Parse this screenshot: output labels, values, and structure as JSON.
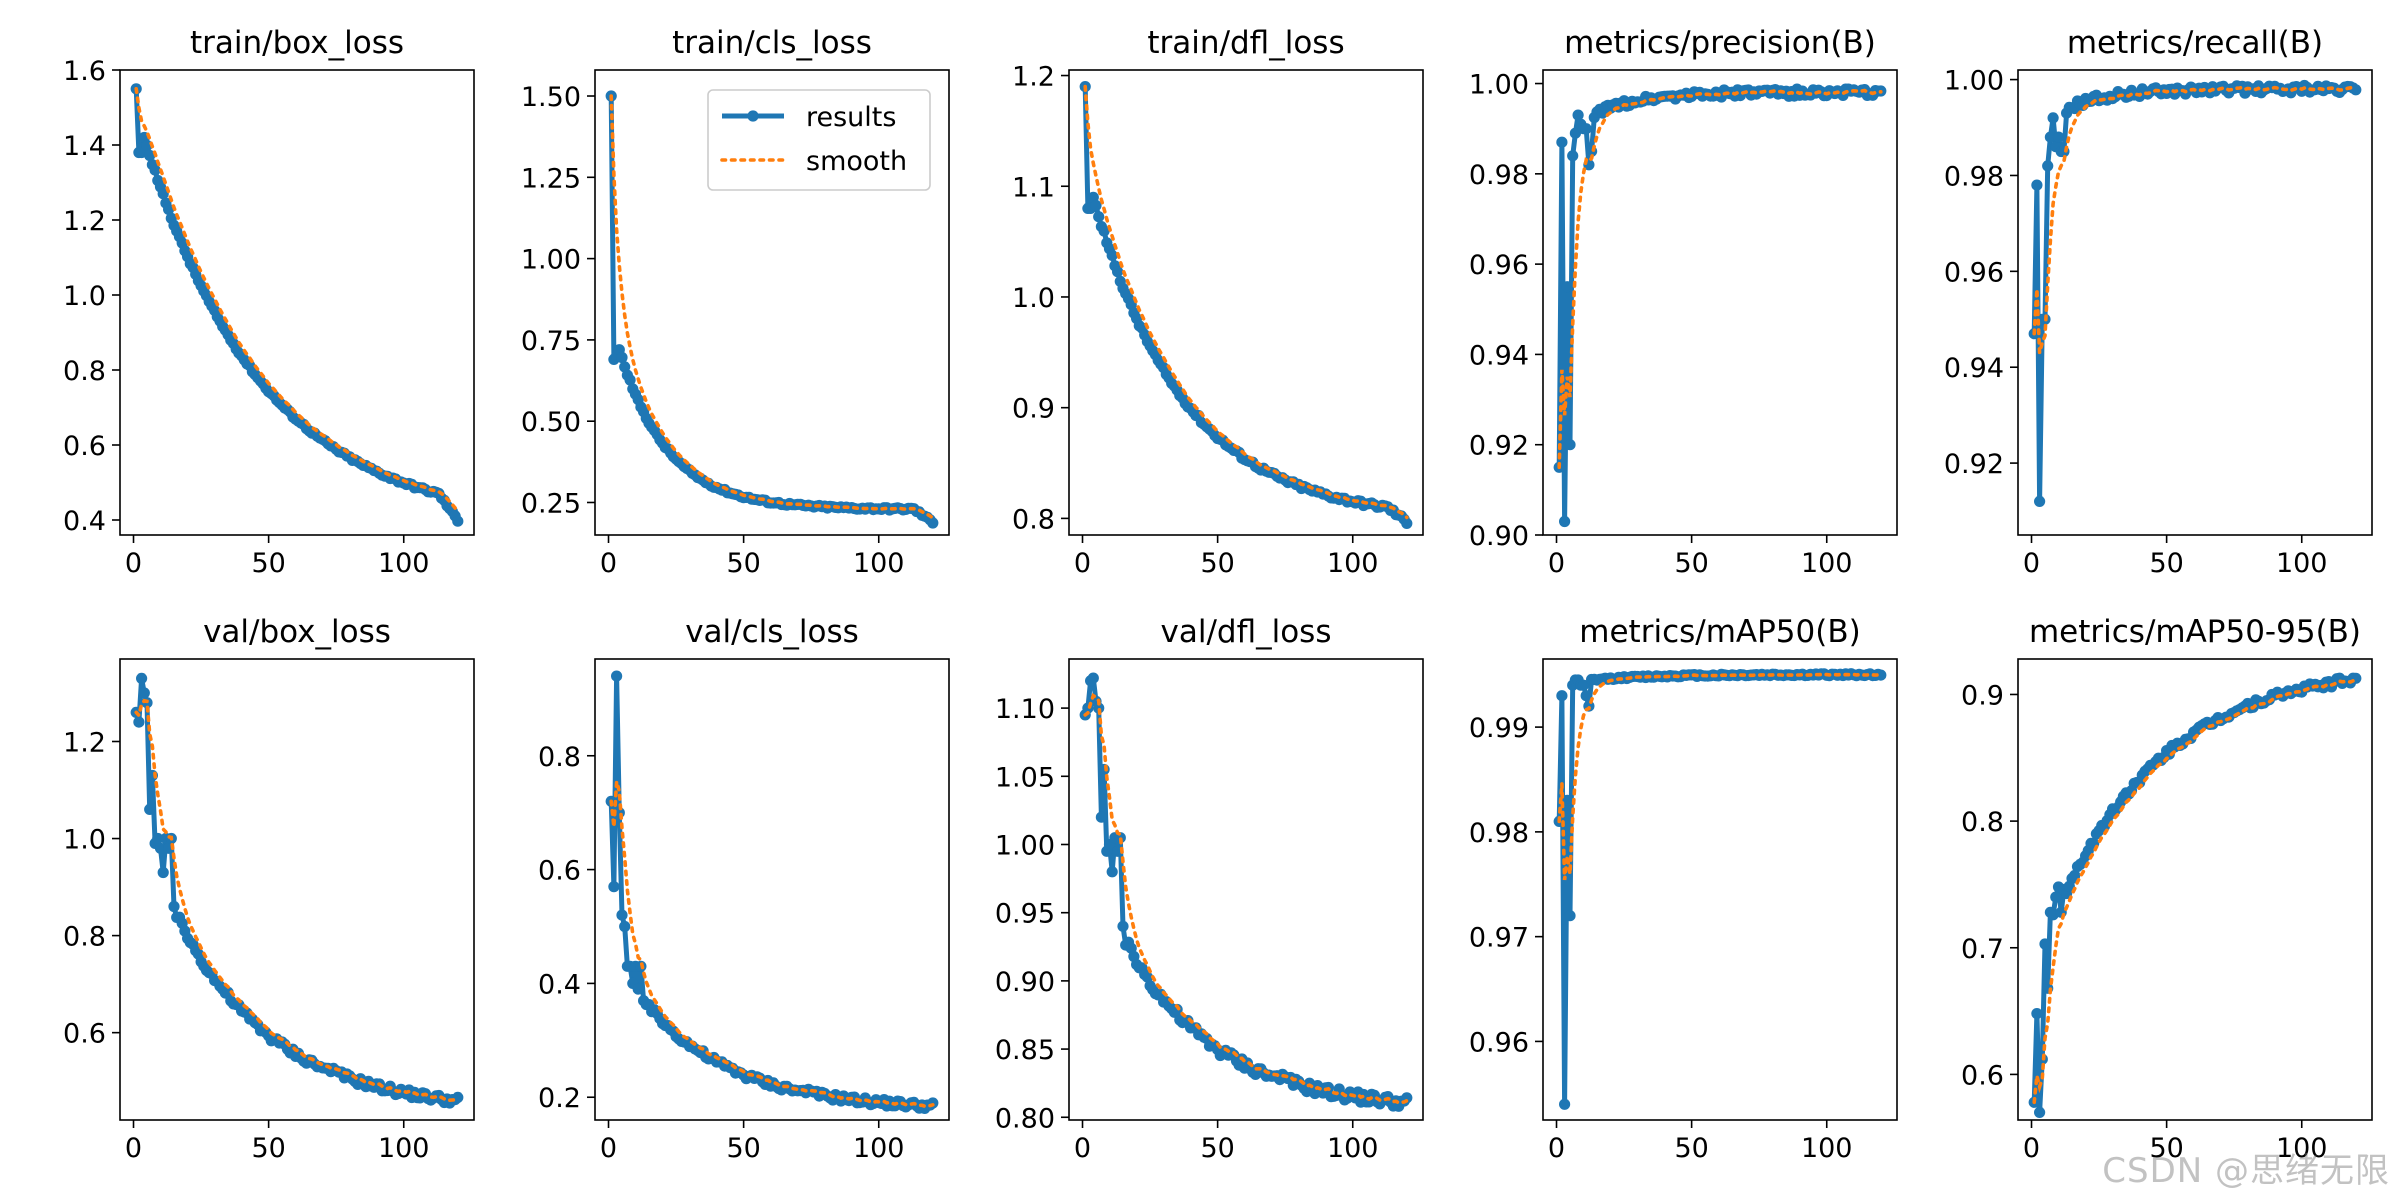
{
  "figure": {
    "watermark": "CSDN @思绪无限",
    "legend": {
      "placement": "upper-right",
      "panel": "train/cls_loss",
      "results_label": "results",
      "smooth_label": "smooth"
    }
  },
  "colors": {
    "results": "#1f77b4",
    "smooth": "#ff7f0e",
    "axes": "#000000",
    "background": "#ffffff"
  },
  "chart_data": [
    {
      "type": "line",
      "title": "train/box_loss",
      "xlim": [
        -5,
        126
      ],
      "ylim": [
        0.36,
        1.6
      ],
      "xticks": [
        0,
        50,
        100
      ],
      "yticks": [
        0.4,
        0.6,
        0.8,
        1.0,
        1.2,
        1.4,
        1.6
      ],
      "ytick_labels": [
        "0.4",
        "0.6",
        "0.8",
        "1.0",
        "1.2",
        "1.4",
        "1.6"
      ],
      "curve": {
        "kind": "decay",
        "start": 1.42,
        "end": 0.47,
        "end_epoch": 113,
        "k": 2.5
      },
      "tail": {
        "from": 113,
        "to": 120,
        "end": 0.4
      },
      "overrides": [
        [
          1,
          1.55
        ],
        [
          2,
          1.38
        ],
        [
          3,
          1.38
        ],
        [
          4,
          1.42
        ]
      ],
      "noise": 0.004
    },
    {
      "type": "line",
      "title": "train/cls_loss",
      "xlim": [
        -5,
        126
      ],
      "ylim": [
        0.15,
        1.58
      ],
      "xticks": [
        0,
        50,
        100
      ],
      "yticks": [
        0.25,
        0.5,
        0.75,
        1.0,
        1.25,
        1.5
      ],
      "ytick_labels": [
        "0.25",
        "0.50",
        "0.75",
        "1.00",
        "1.25",
        "1.50"
      ],
      "curve": {
        "kind": "decay",
        "start": 0.72,
        "end": 0.23,
        "end_epoch": 113,
        "k": 6
      },
      "tail": {
        "from": 113,
        "to": 120,
        "end": 0.19
      },
      "overrides": [
        [
          1,
          1.5
        ],
        [
          2,
          0.69
        ],
        [
          3,
          0.7
        ],
        [
          4,
          0.72
        ]
      ],
      "noise": 0.004
    },
    {
      "type": "line",
      "title": "train/dfl_loss",
      "xlim": [
        -5,
        126
      ],
      "ylim": [
        0.785,
        1.205
      ],
      "xticks": [
        0,
        50,
        100
      ],
      "yticks": [
        0.8,
        0.9,
        1.0,
        1.1,
        1.2
      ],
      "ytick_labels": [
        "0.8",
        "0.9",
        "1.0",
        "1.1",
        "1.2"
      ],
      "curve": {
        "kind": "decay",
        "start": 1.09,
        "end": 0.81,
        "end_epoch": 113,
        "k": 3.2
      },
      "tail": {
        "from": 113,
        "to": 120,
        "end": 0.797
      },
      "overrides": [
        [
          1,
          1.19
        ],
        [
          2,
          1.08
        ],
        [
          3,
          1.08
        ],
        [
          4,
          1.09
        ]
      ],
      "noise": 0.002
    },
    {
      "type": "line",
      "title": "metrics/precision(B)",
      "xlim": [
        -5,
        126
      ],
      "ylim": [
        0.9,
        1.003
      ],
      "xticks": [
        0,
        50,
        100
      ],
      "yticks": [
        0.9,
        0.92,
        0.94,
        0.96,
        0.98,
        1.0
      ],
      "ytick_labels": [
        "0.90",
        "0.92",
        "0.94",
        "0.96",
        "0.98",
        "1.00"
      ],
      "curve": {
        "kind": "plateau",
        "from": 0.993,
        "to": 0.998,
        "tau": 15
      },
      "overrides": [
        [
          1,
          0.915
        ],
        [
          2,
          0.987
        ],
        [
          3,
          0.903
        ],
        [
          4,
          0.955
        ],
        [
          5,
          0.92
        ],
        [
          6,
          0.984
        ],
        [
          7,
          0.989
        ],
        [
          8,
          0.993
        ],
        [
          9,
          0.991
        ],
        [
          10,
          0.99
        ],
        [
          11,
          0.99
        ],
        [
          12,
          0.982
        ],
        [
          13,
          0.985
        ]
      ],
      "noise": 0.0008
    },
    {
      "type": "line",
      "title": "metrics/recall(B)",
      "xlim": [
        -5,
        126
      ],
      "ylim": [
        0.905,
        1.002
      ],
      "xticks": [
        0,
        50,
        100
      ],
      "yticks": [
        0.92,
        0.94,
        0.96,
        0.98,
        1.0
      ],
      "ytick_labels": [
        "0.92",
        "0.94",
        "0.96",
        "0.98",
        "1.00"
      ],
      "curve": {
        "kind": "plateau",
        "from": 0.994,
        "to": 0.998,
        "tau": 15
      },
      "overrides": [
        [
          1,
          0.947
        ],
        [
          2,
          0.978
        ],
        [
          3,
          0.912
        ],
        [
          4,
          0.95
        ],
        [
          5,
          0.95
        ],
        [
          6,
          0.982
        ],
        [
          7,
          0.988
        ],
        [
          8,
          0.992
        ],
        [
          9,
          0.986
        ],
        [
          10,
          0.988
        ],
        [
          11,
          0.985
        ],
        [
          12,
          0.985
        ],
        [
          13,
          0.993
        ]
      ],
      "noise": 0.0008
    },
    {
      "type": "line",
      "title": "val/box_loss",
      "xlim": [
        -5,
        126
      ],
      "ylim": [
        0.42,
        1.37
      ],
      "xticks": [
        0,
        50,
        100
      ],
      "yticks": [
        0.6,
        0.8,
        1.0,
        1.2
      ],
      "ytick_labels": [
        "0.6",
        "0.8",
        "1.0",
        "1.2"
      ],
      "curve": {
        "kind": "decay",
        "start": 1.0,
        "end": 0.46,
        "end_epoch": 120,
        "k": 3.2
      },
      "overrides": [
        [
          1,
          1.26
        ],
        [
          2,
          1.24
        ],
        [
          3,
          1.33
        ],
        [
          4,
          1.3
        ],
        [
          5,
          1.28
        ],
        [
          6,
          1.06
        ],
        [
          7,
          1.13
        ],
        [
          8,
          0.99
        ],
        [
          9,
          1.0
        ],
        [
          10,
          0.98
        ],
        [
          11,
          0.93
        ],
        [
          12,
          1.0
        ],
        [
          13,
          0.98
        ],
        [
          14,
          1.0
        ],
        [
          15,
          0.86
        ]
      ],
      "noise": 0.008
    },
    {
      "type": "line",
      "title": "val/cls_loss",
      "xlim": [
        -5,
        126
      ],
      "ylim": [
        0.16,
        0.97
      ],
      "xticks": [
        0,
        50,
        100
      ],
      "yticks": [
        0.2,
        0.4,
        0.6,
        0.8
      ],
      "ytick_labels": [
        "0.2",
        "0.4",
        "0.6",
        "0.8"
      ],
      "curve": {
        "kind": "decay",
        "start": 0.43,
        "end": 0.185,
        "end_epoch": 120,
        "k": 3.5
      },
      "overrides": [
        [
          1,
          0.72
        ],
        [
          2,
          0.57
        ],
        [
          3,
          0.94
        ],
        [
          4,
          0.7
        ],
        [
          5,
          0.52
        ],
        [
          6,
          0.5
        ],
        [
          7,
          0.43
        ],
        [
          8,
          0.43
        ],
        [
          9,
          0.4
        ],
        [
          10,
          0.43
        ],
        [
          11,
          0.39
        ],
        [
          12,
          0.43
        ]
      ],
      "noise": 0.006
    },
    {
      "type": "line",
      "title": "val/dfl_loss",
      "xlim": [
        -5,
        126
      ],
      "ylim": [
        0.798,
        1.136
      ],
      "xticks": [
        0,
        50,
        100
      ],
      "yticks": [
        0.8,
        0.85,
        0.9,
        0.95,
        1.0,
        1.05,
        1.1
      ],
      "ytick_labels": [
        "0.80",
        "0.85",
        "0.90",
        "0.95",
        "1.00",
        "1.05",
        "1.10"
      ],
      "curve": {
        "kind": "decay",
        "start": 0.98,
        "end": 0.811,
        "end_epoch": 120,
        "k": 3.4
      },
      "overrides": [
        [
          1,
          1.095
        ],
        [
          2,
          1.1
        ],
        [
          3,
          1.12
        ],
        [
          4,
          1.122
        ],
        [
          5,
          1.105
        ],
        [
          6,
          1.1
        ],
        [
          7,
          1.02
        ],
        [
          8,
          1.055
        ],
        [
          9,
          0.995
        ],
        [
          10,
          1.0
        ],
        [
          11,
          0.98
        ],
        [
          12,
          1.005
        ],
        [
          13,
          0.995
        ],
        [
          14,
          1.005
        ],
        [
          15,
          0.94
        ]
      ],
      "noise": 0.004
    },
    {
      "type": "line",
      "title": "metrics/mAP50(B)",
      "xlim": [
        -5,
        126
      ],
      "ylim": [
        0.9525,
        0.9965
      ],
      "xticks": [
        0,
        50,
        100
      ],
      "yticks": [
        0.96,
        0.97,
        0.98,
        0.99
      ],
      "ytick_labels": [
        "0.96",
        "0.97",
        "0.98",
        "0.99"
      ],
      "curve": {
        "kind": "plateau",
        "from": 0.9945,
        "to": 0.995,
        "tau": 20
      },
      "overrides": [
        [
          1,
          0.981
        ],
        [
          2,
          0.993
        ],
        [
          3,
          0.954
        ],
        [
          4,
          0.983
        ],
        [
          5,
          0.972
        ],
        [
          6,
          0.994
        ],
        [
          7,
          0.9945
        ],
        [
          8,
          0.9945
        ],
        [
          9,
          0.994
        ],
        [
          10,
          0.994
        ],
        [
          11,
          0.993
        ],
        [
          12,
          0.992
        ]
      ],
      "noise": 0.0001
    },
    {
      "type": "line",
      "title": "metrics/mAP50-95(B)",
      "xlim": [
        -5,
        126
      ],
      "ylim": [
        0.564,
        0.928
      ],
      "xticks": [
        0,
        50,
        100
      ],
      "yticks": [
        0.6,
        0.7,
        0.8,
        0.9
      ],
      "ytick_labels": [
        "0.6",
        "0.7",
        "0.8",
        "0.9"
      ],
      "curve": {
        "kind": "rise",
        "start": 0.7,
        "end": 0.912,
        "end_epoch": 120,
        "k": 2.9
      },
      "overrides": [
        [
          1,
          0.578
        ],
        [
          2,
          0.648
        ],
        [
          3,
          0.57
        ],
        [
          4,
          0.612
        ],
        [
          5,
          0.703
        ],
        [
          6,
          0.668
        ],
        [
          7,
          0.728
        ],
        [
          8,
          0.726
        ],
        [
          9,
          0.74
        ],
        [
          10,
          0.748
        ],
        [
          11,
          0.728
        ],
        [
          12,
          0.746
        ]
      ],
      "noise": 0.003
    }
  ]
}
